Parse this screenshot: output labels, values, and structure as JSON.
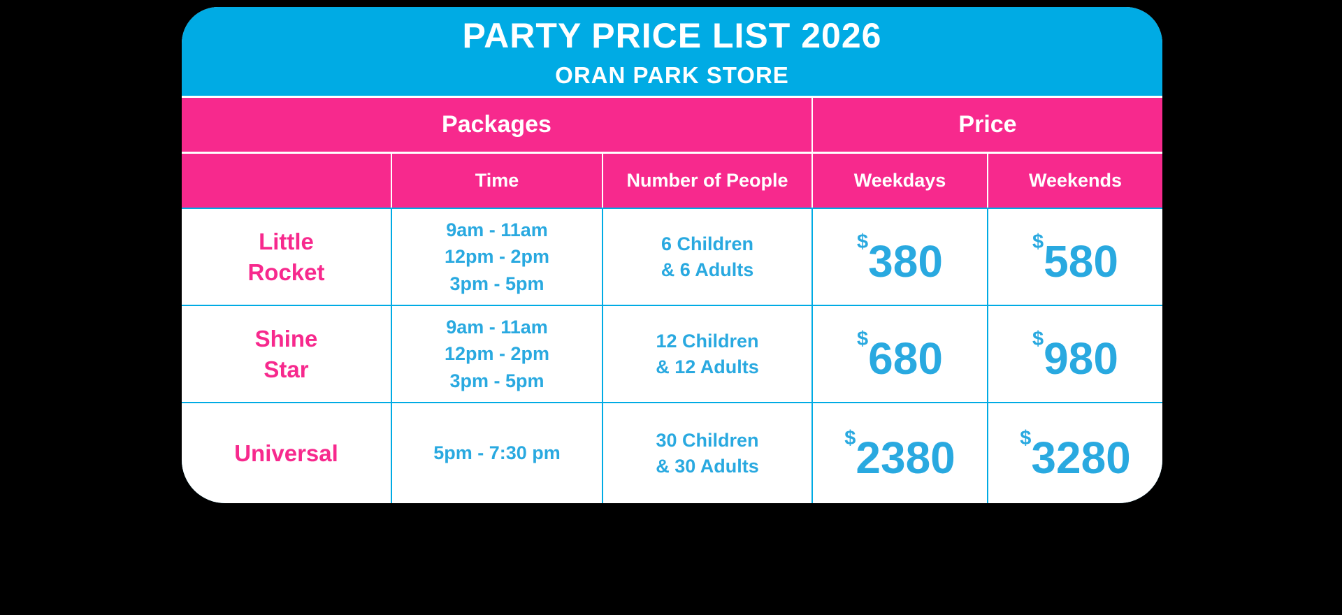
{
  "colors": {
    "background": "#000000",
    "card": "#FFFFFF",
    "cyan": "#00ABE4",
    "pink": "#F7298D",
    "text_cyan": "#29A9E0",
    "header_text": "#FFFFFF"
  },
  "header": {
    "title": "PARTY PRICE LIST 2026",
    "subtitle": "ORAN PARK STORE"
  },
  "table": {
    "group_headers": {
      "packages": "Packages",
      "price": "Price"
    },
    "columns": {
      "package": "",
      "time": "Time",
      "people": "Number of People",
      "weekdays": "Weekdays",
      "weekends": "Weekends"
    },
    "rows": [
      {
        "package": "Little\nRocket",
        "time": "9am - 11am\n12pm - 2pm\n3pm - 5pm",
        "people": "6 Children\n& 6 Adults",
        "weekday_currency": "$",
        "weekday_amount": "380",
        "weekend_currency": "$",
        "weekend_amount": "580"
      },
      {
        "package": "Shine\nStar",
        "time": "9am - 11am\n12pm - 2pm\n3pm - 5pm",
        "people": "12 Children\n& 12 Adults",
        "weekday_currency": "$",
        "weekday_amount": "680",
        "weekend_currency": "$",
        "weekend_amount": "980"
      },
      {
        "package": "Universal",
        "time": "5pm - 7:30 pm",
        "people": "30 Children\n& 30 Adults",
        "weekday_currency": "$",
        "weekday_amount": "2380",
        "weekend_currency": "$",
        "weekend_amount": "3280"
      }
    ]
  }
}
